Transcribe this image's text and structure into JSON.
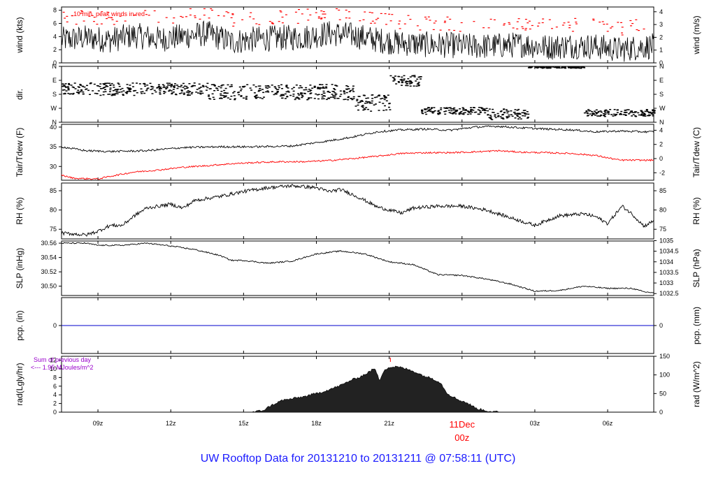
{
  "footer": {
    "title": "UW Rooftop Data for 20131210  to  20131211 @ 07:58:11  (UTC)"
  },
  "time_axis": {
    "ticks": [
      {
        "label": "09z"
      },
      {
        "label": "12z"
      },
      {
        "label": "15z"
      },
      {
        "label": "18z"
      },
      {
        "label": "21z"
      },
      {
        "label": "03z"
      },
      {
        "label": "06z"
      }
    ],
    "day_marker": {
      "line1": "11Dec",
      "line2": "00z",
      "color": "#ff0000"
    }
  },
  "colors": {
    "primary": "#000000",
    "dewpoint": "#ff0000",
    "precip": "#0000cc",
    "radnote": "#9900cc",
    "peak": "#ff0000",
    "title": "#1a1aff"
  },
  "chart_data": [
    {
      "type": "line",
      "panel": "wind",
      "ylabel": "wind (kts)",
      "y2label": "wind (m/s)",
      "ylim": [
        0,
        8.5
      ],
      "yticks": [
        "0",
        "2",
        "4",
        "6",
        "8"
      ],
      "y2ticks": [
        "0",
        "1",
        "2",
        "3",
        "4"
      ],
      "annotation": "10 min. peak winds in red",
      "series": [
        {
          "hours": [
            7.5,
            8.5,
            9.5,
            10.5,
            11.5,
            12.5,
            13.5,
            14.5,
            15.5,
            16.5,
            17.5,
            18.5,
            19.5,
            20.5,
            21.5,
            22.5,
            23.5,
            24.5,
            25.5,
            26.5,
            27.5,
            28.5,
            29.5,
            30.5,
            31.5
          ],
          "values": [
            3.5,
            3.8,
            3.5,
            4.2,
            3.6,
            4.0,
            4.5,
            3.2,
            3.6,
            3.8,
            3.9,
            4.5,
            4.2,
            3.5,
            3.0,
            2.8,
            2.7,
            2.5,
            2.6,
            2.8,
            2.4,
            2.6,
            2.5,
            2.0,
            2.5
          ]
        }
      ]
    },
    {
      "type": "scatter",
      "panel": "dir",
      "ylabel": "dir.",
      "yticks": [
        "N",
        "E",
        "S",
        "W",
        "N"
      ],
      "y2ticks": [
        "N",
        "E",
        "S",
        "W",
        "N"
      ],
      "segments": [
        {
          "from": 7.5,
          "to": 13.5,
          "level": 2.4,
          "spread": 0.45
        },
        {
          "from": 13.5,
          "to": 19.5,
          "level": 2.2,
          "spread": 0.55
        },
        {
          "from": 19.5,
          "to": 21.0,
          "level": 1.4,
          "spread": 0.6
        },
        {
          "from": 21.0,
          "to": 22.3,
          "level": 3.0,
          "spread": 0.4
        },
        {
          "from": 22.3,
          "to": 25.0,
          "level": 0.85,
          "spread": 0.25
        },
        {
          "from": 25.0,
          "to": 26.7,
          "level": 0.6,
          "spread": 0.4
        },
        {
          "from": 26.7,
          "to": 29.0,
          "level": 4.0,
          "spread": 0.1
        },
        {
          "from": 29.0,
          "to": 31.9,
          "level": 0.7,
          "spread": 0.25
        }
      ]
    },
    {
      "type": "line",
      "panel": "temp",
      "ylabel": "Tair/Tdew (F)",
      "y2label": "Tair/Tdew (C)",
      "ylim": [
        26.5,
        40.7
      ],
      "yticks": [
        "30",
        "35",
        "40"
      ],
      "y2ticks": [
        "-2",
        "0",
        "2",
        "4"
      ],
      "series": [
        {
          "hours": [
            7.5,
            8.5,
            9.5,
            11,
            12.5,
            14,
            15.5,
            17,
            18.5,
            19.5,
            20.5,
            21.5,
            22.5,
            23.5,
            24.5,
            25.5,
            26.5,
            27.5,
            28.5,
            29.5,
            30.5,
            31.5
          ],
          "values": [
            35.0,
            34.0,
            33.8,
            34.0,
            34.8,
            35.0,
            35.0,
            35.2,
            36.5,
            37.5,
            38.8,
            39.3,
            39.5,
            39.2,
            40.0,
            40.2,
            39.8,
            39.5,
            39.3,
            38.8,
            39.0,
            38.8
          ]
        },
        {
          "hours": [
            7.5,
            8.0,
            8.5,
            9.0,
            9.5,
            10.5,
            11.5,
            12.5,
            13.5,
            14.5,
            15.5,
            16.5,
            17.5,
            18.5,
            19.5,
            20.5,
            21.5,
            22.5,
            23.5,
            24.5,
            25.5,
            26.5,
            27.5,
            28.5,
            29.5,
            30.5,
            31.5
          ],
          "values": [
            27.8,
            27.0,
            26.9,
            26.8,
            27.5,
            28.6,
            29.1,
            29.8,
            30.2,
            30.7,
            31.0,
            31.2,
            31.2,
            31.5,
            32.0,
            32.6,
            33.3,
            33.5,
            33.5,
            33.7,
            34.0,
            33.6,
            33.5,
            33.3,
            32.8,
            31.6,
            31.6
          ]
        }
      ]
    },
    {
      "type": "line",
      "panel": "rh",
      "ylabel": "RH (%)",
      "y2label": "RH (%)",
      "ylim": [
        72.5,
        87
      ],
      "yticks": [
        "75",
        "80",
        "85"
      ],
      "y2ticks": [
        "75",
        "80",
        "85"
      ],
      "series": [
        {
          "hours": [
            7.5,
            8.0,
            8.5,
            9.0,
            9.5,
            10.0,
            10.5,
            11.0,
            11.5,
            12.0,
            12.5,
            13.0,
            14.0,
            15.0,
            16.0,
            17.0,
            18.0,
            18.5,
            19.0,
            19.5,
            20.0,
            20.5,
            21.0,
            21.5,
            22.0,
            23.0,
            24.0,
            25.0,
            26.0,
            27.0,
            27.5,
            28.0,
            29.0,
            29.5,
            30.0,
            30.3,
            30.6,
            31.0,
            31.5,
            31.9
          ],
          "values": [
            74.0,
            73.8,
            73.5,
            74.5,
            76.0,
            76.0,
            78.5,
            80.5,
            81.0,
            81.5,
            80.5,
            82.5,
            83.5,
            84.8,
            85.8,
            86.3,
            85.8,
            84.8,
            85.3,
            84.0,
            82.5,
            80.8,
            80.0,
            79.2,
            80.5,
            81.0,
            81.0,
            80.0,
            78.0,
            76.0,
            77.3,
            78.5,
            79.0,
            78.3,
            76.5,
            78.8,
            81.0,
            79.0,
            75.8,
            77.2
          ]
        }
      ]
    },
    {
      "type": "line",
      "panel": "slp",
      "ylabel": "SLP (inHg)",
      "y2label": "SLP (hPa)",
      "ylim": [
        30.487,
        30.563
      ],
      "yticks": [
        "30.50",
        "30.52",
        "30.54",
        "30.56"
      ],
      "y2ticks": [
        "1032.5",
        "1033",
        "1033.5",
        "1034",
        "1034.5",
        "1035"
      ],
      "series": [
        {
          "hours": [
            7.5,
            8.5,
            9.0,
            10.0,
            11.0,
            12.0,
            13.0,
            14.0,
            14.5,
            15.0,
            16.0,
            17.0,
            18.0,
            19.0,
            20.0,
            21.0,
            22.0,
            23.0,
            24.0,
            25.0,
            26.0,
            27.0,
            28.0,
            29.0,
            30.0,
            31.0,
            31.5,
            31.9
          ],
          "values": [
            30.56,
            30.56,
            30.557,
            30.557,
            30.56,
            30.556,
            30.551,
            30.543,
            30.536,
            30.536,
            30.532,
            30.535,
            30.545,
            30.549,
            30.545,
            30.534,
            30.53,
            30.516,
            30.515,
            30.51,
            30.503,
            30.493,
            30.494,
            30.5,
            30.497,
            30.497,
            30.492,
            30.491
          ]
        }
      ]
    },
    {
      "type": "line",
      "panel": "pcp",
      "ylabel": "pcp. (in)",
      "y2label": "pcp. (mm)",
      "ylim": [
        -1,
        1
      ],
      "yticks": [
        "0"
      ],
      "y2ticks": [
        "0"
      ],
      "series": [
        {
          "hours": [
            7.5,
            31.9
          ],
          "values": [
            0,
            0
          ]
        }
      ]
    },
    {
      "type": "area",
      "panel": "rad",
      "ylabel": "rad(Lgly/hr)",
      "y2label": "rad (W/m^2)",
      "ylim": [
        0,
        150
      ],
      "yticks": [
        "0",
        "2",
        "4",
        "6",
        "8",
        "10",
        "12"
      ],
      "y2ticks": [
        "0",
        "50",
        "100",
        "150"
      ],
      "note_line1": "Sum of previous day",
      "note_line2": "<--- 1.95 MJoules/m^2",
      "series": [
        {
          "hours": [
            7.5,
            15.4,
            15.8,
            16.2,
            16.6,
            17.0,
            17.5,
            18.0,
            18.5,
            19.0,
            19.4,
            19.8,
            20.1,
            20.4,
            20.6,
            20.8,
            21.0,
            21.3,
            21.6,
            22.0,
            22.4,
            22.8,
            23.1,
            23.4,
            23.8,
            24.2,
            24.6,
            25.0,
            25.5,
            31.9
          ],
          "values": [
            0,
            0,
            5,
            20,
            32,
            36,
            42,
            50,
            60,
            72,
            85,
            95,
            105,
            118,
            85,
            115,
            120,
            122,
            118,
            110,
            98,
            90,
            80,
            50,
            35,
            25,
            10,
            4,
            0,
            0
          ]
        }
      ]
    }
  ]
}
